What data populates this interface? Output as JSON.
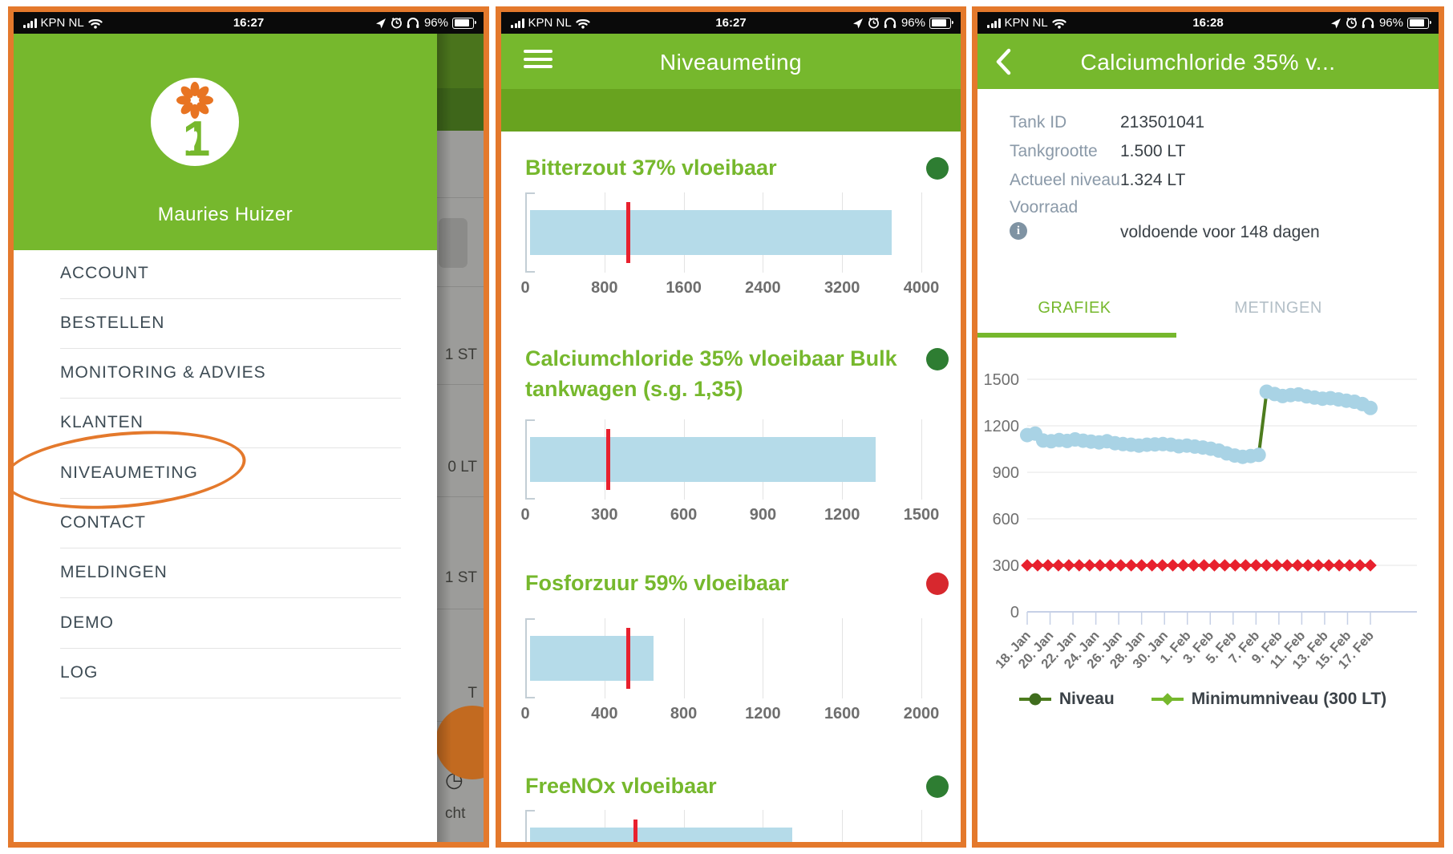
{
  "colors": {
    "frame_orange": "#e4792c",
    "brand_green": "#76b82d",
    "dark_strip_green": "#68a31f",
    "bar_blue": "#b5dbe9",
    "minimum_red": "#e8212e",
    "status_ok_green": "#2e7d32",
    "status_alarm_red": "#d7282e",
    "niveau_line_green": "#4d7c1e",
    "niveau_marker_blue": "#a9d3e5",
    "fab_orange": "#c26a20"
  },
  "status_bar": {
    "carrier": "KPN NL",
    "time_1": "16:27",
    "time_2": "16:28",
    "battery_pct": "96%"
  },
  "drawer": {
    "profile_name": "Mauries Huizer",
    "menu": [
      "ACCOUNT",
      "BESTELLEN",
      "MONITORING & ADVIES",
      "KLANTEN",
      "NIVEAUMETING",
      "CONTACT",
      "MELDINGEN",
      "DEMO",
      "LOG"
    ],
    "annotated_item": "NIVEAUMETING",
    "background_fragments": {
      "qty_1": "1 ST",
      "qty_2": "0 LT",
      "qty_3": "1 ST",
      "fab_fragment": "T",
      "bottom_fragment": "cht"
    }
  },
  "levels_page": {
    "title": "Niveaumeting"
  },
  "detail_page": {
    "title": "Calciumchloride 35% v...",
    "info_rows": [
      {
        "label": "Tank ID",
        "value": "213501041"
      },
      {
        "label": "Tankgrootte",
        "value": "1.500 LT"
      },
      {
        "label": "Actueel niveau",
        "value": "1.324 LT"
      },
      {
        "label": "Voorraad",
        "value": ""
      }
    ],
    "note": "voldoende voor 148 dagen",
    "tabs": {
      "grafiek": "GRAFIEK",
      "metingen": "METINGEN",
      "active": "GRAFIEK"
    }
  },
  "chart_data": {
    "tank_bars": [
      {
        "type": "bar",
        "name": "Bitterzout 37% vloeibaar",
        "status": "ok",
        "xlim": [
          0,
          4000
        ],
        "ticks": [
          0,
          800,
          1600,
          2400,
          3200,
          4000
        ],
        "level": 3700,
        "minimum": 1000
      },
      {
        "type": "bar",
        "name": "Calciumchloride 35% vloeibaar Bulk tankwagen (s.g. 1,35)",
        "status": "ok",
        "xlim": [
          0,
          1500
        ],
        "ticks": [
          0,
          300,
          600,
          900,
          1200,
          1500
        ],
        "level": 1324,
        "minimum": 300
      },
      {
        "type": "bar",
        "name": "Fosforzuur 59% vloeibaar",
        "status": "alarm",
        "xlim": [
          0,
          2000
        ],
        "ticks": [
          0,
          400,
          800,
          1200,
          1600,
          2000
        ],
        "level": 630,
        "minimum": 500
      },
      {
        "type": "bar",
        "name": "FreeNOx vloeibaar",
        "status": "ok",
        "xlim": null,
        "ticks": [],
        "level_fraction": 0.67,
        "minimum_fraction": 0.27
      }
    ],
    "level_history": {
      "type": "line",
      "ylim": [
        0,
        1500
      ],
      "yticks": [
        0,
        300,
        600,
        900,
        1200,
        1500
      ],
      "x_labels": [
        "18. Jan",
        "20. Jan",
        "22. Jan",
        "24. Jan",
        "26. Jan",
        "28. Jan",
        "30. Jan",
        "1. Feb",
        "3. Feb",
        "5. Feb",
        "7. Feb",
        "9. Feb",
        "11. Feb",
        "13. Feb",
        "15. Feb",
        "17. Feb"
      ],
      "series": [
        {
          "name": "Niveau",
          "values": [
            1140,
            1150,
            1105,
            1100,
            1108,
            1102,
            1112,
            1104,
            1098,
            1093,
            1100,
            1088,
            1082,
            1078,
            1072,
            1078,
            1080,
            1082,
            1078,
            1068,
            1072,
            1066,
            1060,
            1052,
            1040,
            1022,
            1008,
            1000,
            1005,
            1012,
            1420,
            1405,
            1392,
            1398,
            1402,
            1390,
            1382,
            1375,
            1378,
            1370,
            1362,
            1355,
            1340,
            1315
          ]
        },
        {
          "name": "Minimumniveau (300 LT)",
          "constant_value": 300,
          "marker_count": 34
        }
      ],
      "legend": [
        "Niveau",
        "Minimumniveau (300 LT)"
      ],
      "grid": true,
      "legend_position": "bottom"
    }
  }
}
